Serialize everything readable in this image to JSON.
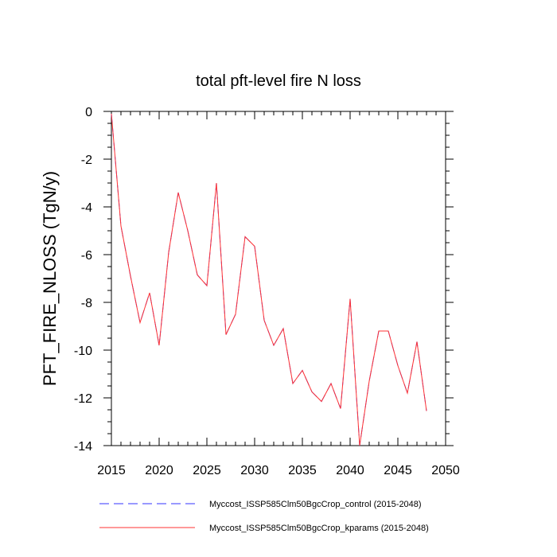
{
  "chart_data": {
    "type": "line",
    "title": "total pft-level fire N loss",
    "xlabel": "",
    "ylabel": "PFT_FIRE_NLOSS  (TgN/y)",
    "xlim": [
      2015,
      2050
    ],
    "ylim": [
      -14,
      0
    ],
    "xticks": [
      2015,
      2020,
      2025,
      2030,
      2035,
      2040,
      2045,
      2050
    ],
    "yticks": [
      0,
      -2,
      -4,
      -6,
      -8,
      -10,
      -12,
      -14
    ],
    "grid": false,
    "legend_position": "bottom",
    "x": [
      2015,
      2016,
      2017,
      2018,
      2019,
      2020,
      2021,
      2022,
      2023,
      2024,
      2025,
      2026,
      2027,
      2028,
      2029,
      2030,
      2031,
      2032,
      2033,
      2034,
      2035,
      2036,
      2037,
      2038,
      2039,
      2040,
      2041,
      2042,
      2043,
      2044,
      2045,
      2046,
      2047,
      2048
    ],
    "series": [
      {
        "name": "Myccost_ISSP585Clm50BgcCrop_control (2015-2048)",
        "color": "#3333ff",
        "dash": "dashed",
        "values": [
          -0.1,
          -4.8,
          -6.9,
          -8.85,
          -7.6,
          -9.8,
          -5.9,
          -3.4,
          -5.0,
          -6.85,
          -7.3,
          -3.0,
          -9.35,
          -8.5,
          -5.25,
          -5.65,
          -8.75,
          -9.8,
          -9.1,
          -11.4,
          -10.85,
          -11.75,
          -12.15,
          -11.4,
          -12.45,
          -7.85,
          -14.0,
          -11.3,
          -9.2,
          -9.2,
          -10.65,
          -11.8,
          -9.65,
          -12.55
        ]
      },
      {
        "name": "Myccost_ISSP585Clm50BgcCrop_kparams (2015-2048)",
        "color": "#ff3333",
        "dash": "solid",
        "values": [
          -0.1,
          -4.8,
          -6.9,
          -8.85,
          -7.6,
          -9.8,
          -5.9,
          -3.4,
          -5.0,
          -6.85,
          -7.3,
          -3.0,
          -9.35,
          -8.5,
          -5.25,
          -5.65,
          -8.75,
          -9.8,
          -9.1,
          -11.4,
          -10.85,
          -11.75,
          -12.15,
          -11.4,
          -12.45,
          -7.85,
          -14.0,
          -11.3,
          -9.2,
          -9.2,
          -10.65,
          -11.8,
          -9.65,
          -12.55
        ]
      }
    ]
  }
}
